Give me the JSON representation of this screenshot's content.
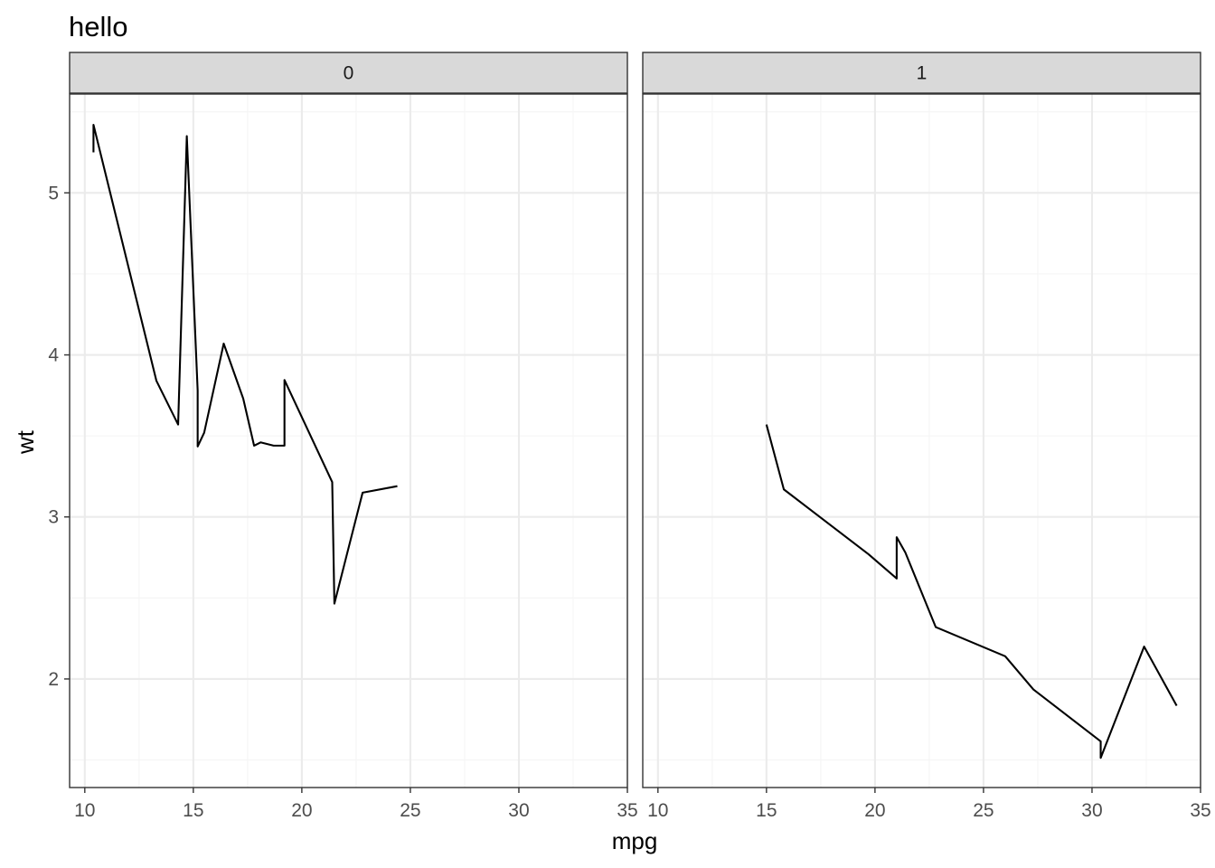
{
  "chart_data": {
    "type": "line",
    "title": "hello",
    "xlabel": "mpg",
    "ylabel": "wt",
    "xlim": [
      9.3,
      35
    ],
    "ylim": [
      1.33,
      5.61
    ],
    "x_ticks": [
      10,
      15,
      20,
      25,
      30,
      35
    ],
    "y_ticks": [
      2,
      3,
      4,
      5
    ],
    "grid": true,
    "colors": {
      "line": "#000000",
      "grid_major": "#ebebeb",
      "grid_minor": "#f5f5f5",
      "strip_fill": "#d9d9d9",
      "panel_border": "#333333"
    },
    "facets": [
      {
        "label": "0",
        "x": [
          10.4,
          10.4,
          13.3,
          14.3,
          14.7,
          15.2,
          15.2,
          15.5,
          16.4,
          17.3,
          17.8,
          18.1,
          18.7,
          19.2,
          19.2,
          21.4,
          21.5,
          22.8,
          24.4
        ],
        "y": [
          5.25,
          5.42,
          3.84,
          3.57,
          5.35,
          3.78,
          3.435,
          3.52,
          4.07,
          3.73,
          3.44,
          3.46,
          3.44,
          3.44,
          3.845,
          3.215,
          2.465,
          3.15,
          3.19
        ]
      },
      {
        "label": "1",
        "x": [
          15.0,
          15.8,
          19.7,
          21.0,
          21.0,
          21.4,
          22.8,
          26.0,
          27.3,
          30.4,
          30.4,
          32.4,
          33.9
        ],
        "y": [
          3.57,
          3.17,
          2.77,
          2.62,
          2.875,
          2.78,
          2.32,
          2.14,
          1.935,
          1.615,
          1.513,
          2.2,
          1.835
        ]
      }
    ]
  }
}
